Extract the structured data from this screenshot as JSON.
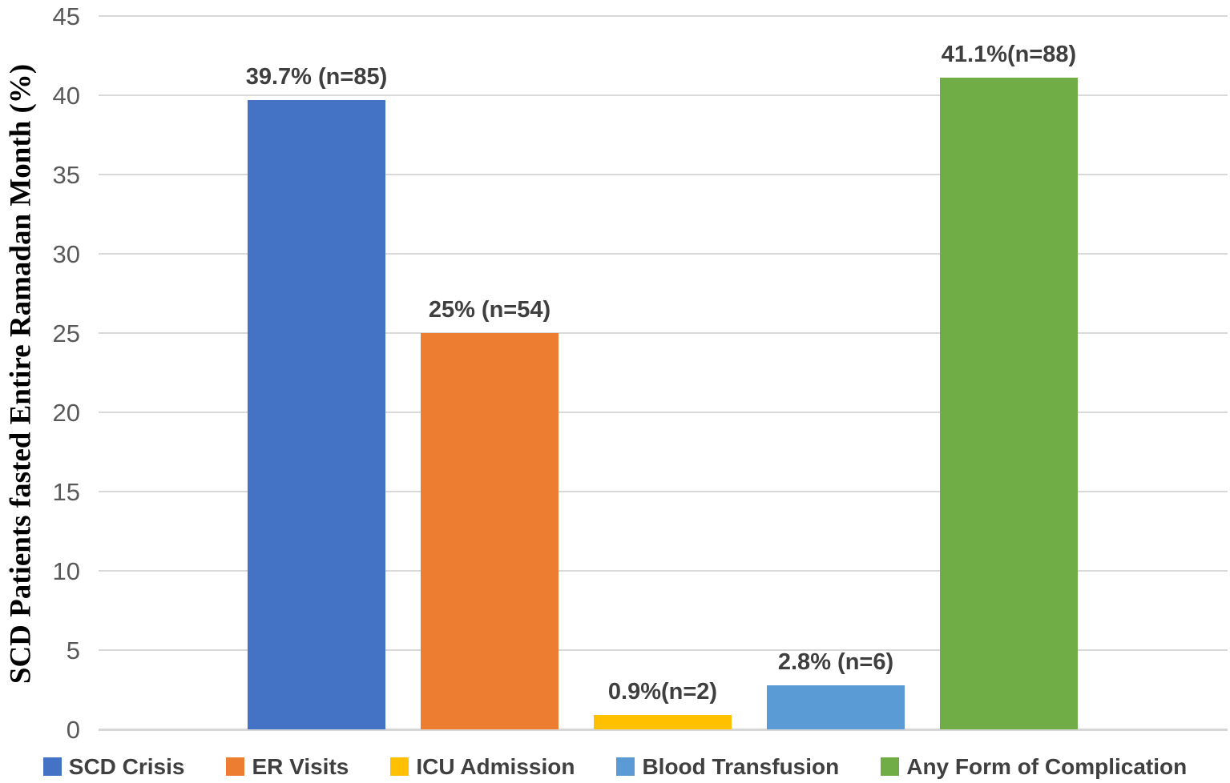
{
  "chart_data": {
    "type": "bar",
    "title": "",
    "xlabel": "",
    "ylabel": "SCD Patients fasted Entire Ramadan Month (%)",
    "ylim": [
      0,
      45
    ],
    "yticks": [
      0,
      5,
      10,
      15,
      20,
      25,
      30,
      35,
      40,
      45
    ],
    "grid": true,
    "legend_position": "bottom",
    "gridline_color": "#d9d9d9",
    "series": [
      {
        "name": "SCD Crisis",
        "value": 39.7,
        "n": 85,
        "data_label": "39.7% (n=85)",
        "color": "#4472c4"
      },
      {
        "name": "ER Visits",
        "value": 25,
        "n": 54,
        "data_label": "25% (n=54)",
        "color": "#ed7d31"
      },
      {
        "name": "ICU Admission",
        "value": 0.9,
        "n": 2,
        "data_label": "0.9%(n=2)",
        "color": "#ffc000"
      },
      {
        "name": "Blood Transfusion",
        "value": 2.8,
        "n": 6,
        "data_label": "2.8% (n=6)",
        "color": "#5b9bd5"
      },
      {
        "name": "Any Form of Complication",
        "value": 41.1,
        "n": 88,
        "data_label": "41.1%(n=88)",
        "color": "#70ad47"
      }
    ]
  }
}
